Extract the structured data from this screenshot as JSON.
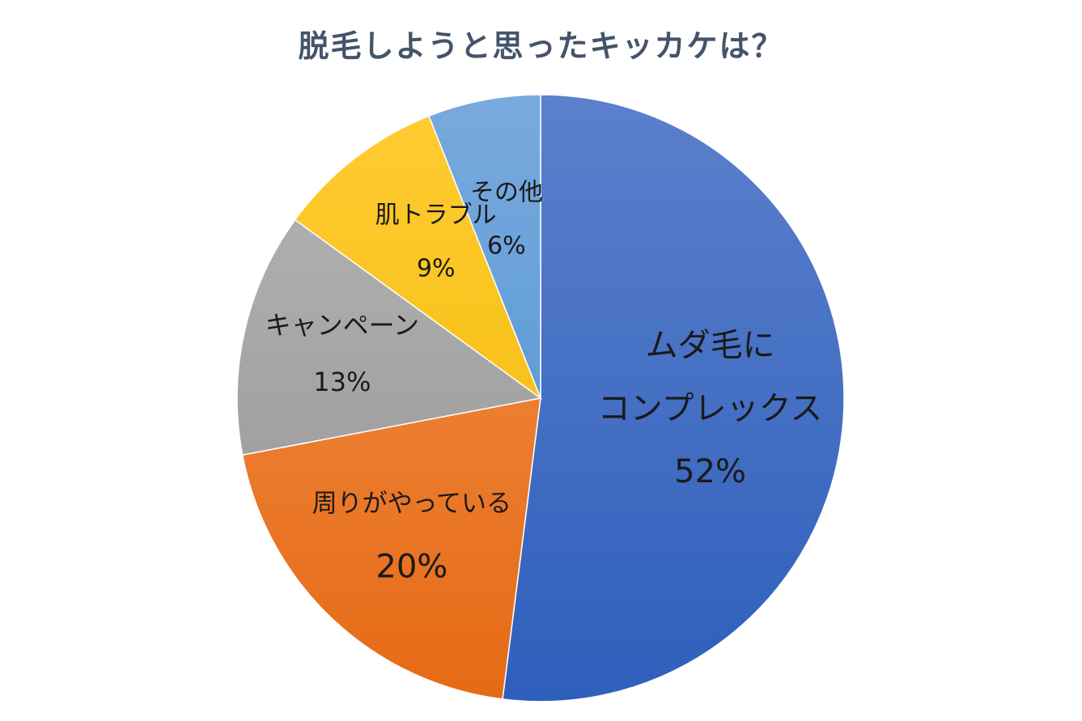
{
  "chart_data": {
    "type": "pie",
    "title": "脱毛しようと思ったキッカケは？",
    "start_angle_deg": 0,
    "direction": "clockwise",
    "slices": [
      {
        "label_lines": [
          "ムダ毛に",
          "コンプレックス"
        ],
        "value": 52,
        "percent_label": "52%",
        "color_top": "#5b80cc",
        "color_bottom": "#2e5fbb"
      },
      {
        "label_lines": [
          "周りがやっている"
        ],
        "value": 20,
        "percent_label": "20%",
        "color_top": "#f4934e",
        "color_bottom": "#e56a15"
      },
      {
        "label_lines": [
          "キャンペーン"
        ],
        "value": 13,
        "percent_label": "13%",
        "color_top": "#b6b6b6",
        "color_bottom": "#929292"
      },
      {
        "label_lines": [
          "肌トラブル"
        ],
        "value": 9,
        "percent_label": "9%",
        "color_top": "#ffcc33",
        "color_bottom": "#f2b600"
      },
      {
        "label_lines": [
          "その他"
        ],
        "value": 6,
        "percent_label": "6%",
        "color_top": "#78aadd",
        "color_bottom": "#4a8fd3"
      }
    ]
  }
}
